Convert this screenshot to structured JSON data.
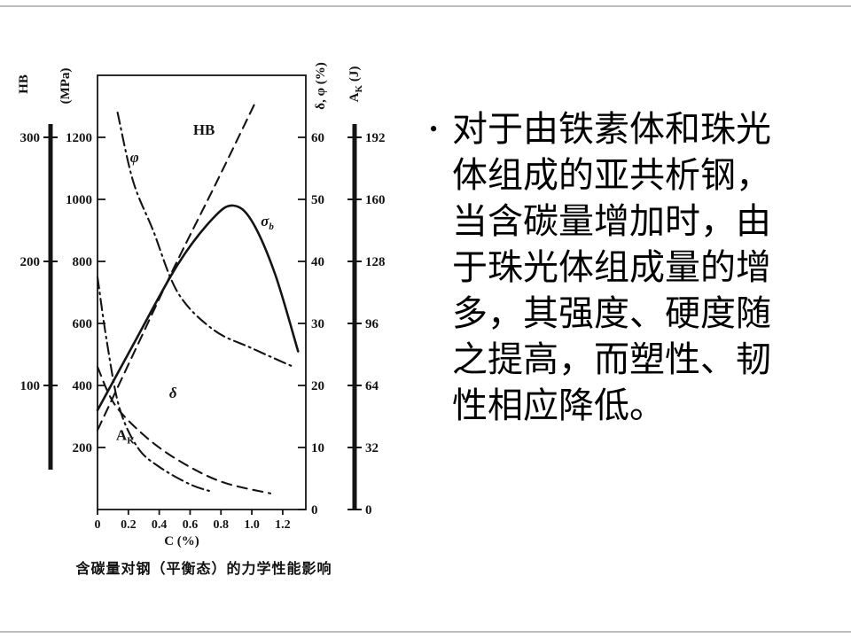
{
  "content": {
    "bullet_marker": "•",
    "paragraph": "对于由铁素体和珠光体组成的亚共析钢，当含碳量增加时，由于珠光体组成量的增多，其强度、硬度随之提高，而塑性、韧性相应降低。"
  },
  "chart_data": {
    "type": "line",
    "title": "含碳量对钢（平衡态）的力学性能影响",
    "xlabel": "C (%)",
    "x_range": [
      0,
      1.35
    ],
    "x_ticks": [
      0,
      0.2,
      0.4,
      0.6,
      0.8,
      1.0,
      1.2
    ],
    "grid": false,
    "legend": "curve labels drawn on plot",
    "axes": [
      {
        "id": "hb",
        "label": "HB",
        "position": "outer-left",
        "range": [
          0,
          350
        ],
        "ticks": [
          100,
          200,
          300
        ]
      },
      {
        "id": "mpa",
        "label": "(MPa)",
        "position": "left",
        "range": [
          0,
          1400
        ],
        "ticks": [
          200,
          400,
          600,
          800,
          1000,
          1200
        ]
      },
      {
        "id": "pct",
        "label": "δ, φ (%)",
        "position": "right",
        "range": [
          0,
          70
        ],
        "ticks": [
          0,
          10,
          20,
          30,
          40,
          50,
          60
        ]
      },
      {
        "id": "ak",
        "label": "A_{K} (J)",
        "position": "outer-right",
        "range": [
          0,
          224
        ],
        "ticks": [
          0,
          32,
          64,
          96,
          128,
          160,
          192
        ]
      }
    ],
    "series": [
      {
        "id": "hb",
        "label": "HB",
        "axis": "hb",
        "style": "dashed",
        "points": [
          [
            0,
            64
          ],
          [
            0.25,
            130
          ],
          [
            0.5,
            196
          ],
          [
            0.78,
            266
          ],
          [
            1.03,
            330
          ]
        ],
        "label_at": [
          0.69,
          302
        ]
      },
      {
        "id": "sigma-b",
        "label": "σ_{b}",
        "axis": "mpa",
        "style": "solid",
        "points": [
          [
            0,
            320
          ],
          [
            0.23,
            530
          ],
          [
            0.52,
            790
          ],
          [
            0.75,
            940
          ],
          [
            0.88,
            980
          ],
          [
            1.0,
            930
          ],
          [
            1.15,
            760
          ],
          [
            1.3,
            510
          ]
        ],
        "label_at": [
          1.1,
          915
        ]
      },
      {
        "id": "phi",
        "label": "φ",
        "axis": "pct",
        "style": "dashdot",
        "points": [
          [
            0.13,
            64
          ],
          [
            0.23,
            53
          ],
          [
            0.36,
            45
          ],
          [
            0.52,
            35
          ],
          [
            0.75,
            29
          ],
          [
            1.0,
            26
          ],
          [
            1.27,
            23
          ]
        ],
        "label_at": [
          0.24,
          56
        ]
      },
      {
        "id": "delta",
        "label": "δ",
        "axis": "pct",
        "style": "dashed",
        "points": [
          [
            0,
            23
          ],
          [
            0.11,
            17
          ],
          [
            0.3,
            12
          ],
          [
            0.52,
            8
          ],
          [
            0.8,
            4.5
          ],
          [
            1.12,
            2.6
          ]
        ],
        "label_at": [
          0.49,
          18
        ]
      },
      {
        "id": "ak",
        "label": "A_{K}",
        "axis": "ak",
        "style": "dashdot",
        "points": [
          [
            0,
            120
          ],
          [
            0.06,
            87
          ],
          [
            0.14,
            53
          ],
          [
            0.26,
            32
          ],
          [
            0.4,
            22
          ],
          [
            0.6,
            13
          ],
          [
            0.75,
            9
          ]
        ],
        "label_at": [
          0.18,
          36
        ]
      }
    ]
  }
}
